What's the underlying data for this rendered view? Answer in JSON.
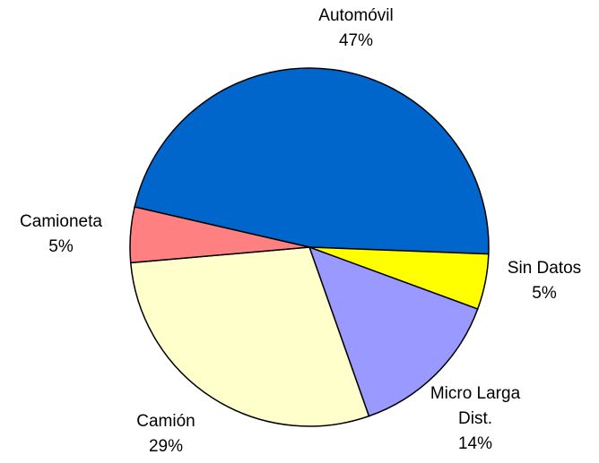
{
  "chart_data": {
    "type": "pie",
    "categories": [
      "Automóvil",
      "Sin Datos",
      "Micro Larga Dist.",
      "Camión",
      "Camioneta"
    ],
    "values": [
      47,
      5,
      14,
      29,
      5
    ],
    "value_labels": [
      "47%",
      "5%",
      "14%",
      "29%",
      "5%"
    ],
    "colors": [
      "#0066cc",
      "#ffff00",
      "#9999ff",
      "#ffffcc",
      "#ff8080"
    ]
  }
}
